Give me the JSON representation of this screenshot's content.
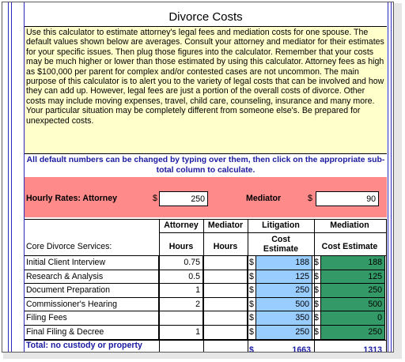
{
  "title": "Divorce Costs",
  "intro": "Use this calculator to estimate attorney's legal fees and mediation costs for one spouse. The default values shown below are averages. Consult your attorney and mediator for their estimates for your specific issues. Then plug those figures into the calculator. Remember that your costs may be much higher or lower than those estimated by using this calculator. Attorney fees as high as $100,000 per parent for complex and/or contested cases are not uncommon. The main purpose of this calculator is to alert you to the variety of legal costs that can be involved and how they can add up. However, legal fees are just a portion of the overall costs of divorce. Other costs may include moving expenses, travel, child care, counseling, insurance and many more. Your particular situation may be completely different from someone else's. Be prepared for unexpected costs.",
  "note": "All default numbers can be changed by typing over them, then click on the appropriate sub-total column to calculate.",
  "rates": {
    "attorney_label": "Hourly Rates: Attorney",
    "attorney_currency": "$",
    "attorney_value": "250",
    "mediator_label": "Mediator",
    "mediator_currency": "$",
    "mediator_value": "90"
  },
  "table": {
    "col_attorney_top": "Attorney",
    "col_attorney_sub": "Hours",
    "col_mediator_top": "Mediator",
    "col_mediator_sub": "Hours",
    "col_litigation_top": "Litigation",
    "col_litigation_sub": "Cost Estimate",
    "col_mediation_top": "Mediation",
    "col_mediation_sub": "Cost Estimate",
    "section_label": "Core Divorce Services:",
    "currency": "$",
    "rows": [
      {
        "service": "Initial Client Interview",
        "attorney_hours": "0.75",
        "mediator_hours": "",
        "litigation": "188",
        "mediation": "188"
      },
      {
        "service": "Research & Analysis",
        "attorney_hours": "0.5",
        "mediator_hours": "",
        "litigation": "125",
        "mediation": "125"
      },
      {
        "service": "Document Preparation",
        "attorney_hours": "1",
        "mediator_hours": "",
        "litigation": "250",
        "mediation": "250"
      },
      {
        "service": "Commissioner's Hearing",
        "attorney_hours": "2",
        "mediator_hours": "",
        "litigation": "500",
        "mediation": "500"
      },
      {
        "service": "Filing Fees",
        "attorney_hours": "",
        "mediator_hours": "",
        "litigation": "350",
        "mediation": "0"
      },
      {
        "service": "Final Filing & Decree",
        "attorney_hours": "1",
        "mediator_hours": "",
        "litigation": "250",
        "mediation": "250"
      }
    ],
    "total_label": "Total: no custody or property",
    "total_litigation": "1663",
    "total_mediation": "1313"
  }
}
